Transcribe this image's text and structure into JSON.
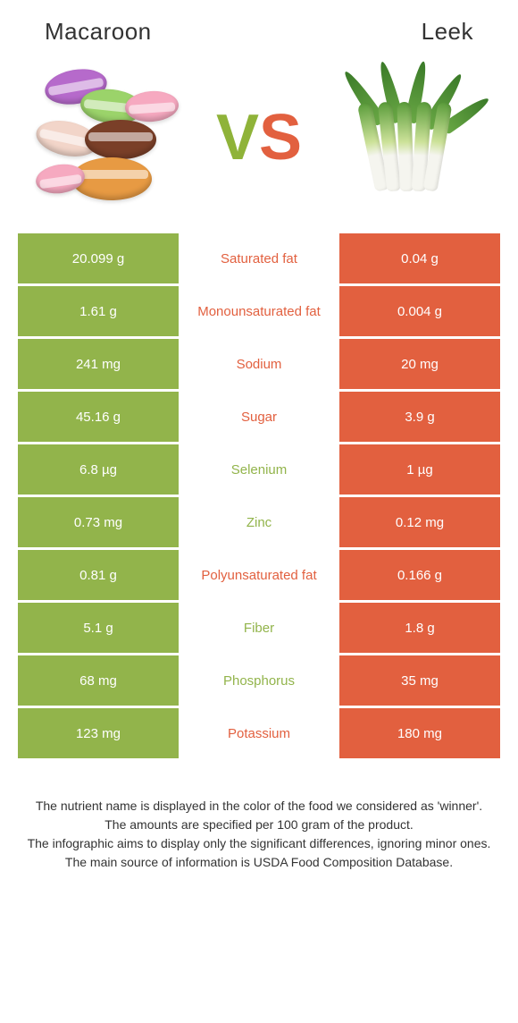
{
  "header": {
    "left_title": "Macaroon",
    "right_title": "Leek",
    "vs_v": "V",
    "vs_s": "S"
  },
  "colors": {
    "macaroon_bg": "#92b44b",
    "leek_bg": "#e2603f",
    "macaroon_text": "#92b44b",
    "leek_text": "#e2603f",
    "cell_text": "#ffffff",
    "footer_text": "#333333"
  },
  "rows": [
    {
      "left": "20.099 g",
      "label": "Saturated fat",
      "right": "0.04 g",
      "winner": "leek"
    },
    {
      "left": "1.61 g",
      "label": "Monounsaturated fat",
      "right": "0.004 g",
      "winner": "leek"
    },
    {
      "left": "241 mg",
      "label": "Sodium",
      "right": "20 mg",
      "winner": "leek"
    },
    {
      "left": "45.16 g",
      "label": "Sugar",
      "right": "3.9 g",
      "winner": "leek"
    },
    {
      "left": "6.8 µg",
      "label": "Selenium",
      "right": "1 µg",
      "winner": "macaroon"
    },
    {
      "left": "0.73 mg",
      "label": "Zinc",
      "right": "0.12 mg",
      "winner": "macaroon"
    },
    {
      "left": "0.81 g",
      "label": "Polyunsaturated fat",
      "right": "0.166 g",
      "winner": "leek"
    },
    {
      "left": "5.1 g",
      "label": "Fiber",
      "right": "1.8 g",
      "winner": "macaroon"
    },
    {
      "left": "68 mg",
      "label": "Phosphorus",
      "right": "35 mg",
      "winner": "macaroon"
    },
    {
      "left": "123 mg",
      "label": "Potassium",
      "right": "180 mg",
      "winner": "leek"
    }
  ],
  "footer": {
    "line1": "The nutrient name is displayed in the color of the food we considered as 'winner'.",
    "line2": "The amounts are specified per 100 gram of the product.",
    "line3": "The infographic aims to display only the significant differences, ignoring minor ones.",
    "line4": "The main source of information is USDA Food Composition Database."
  }
}
